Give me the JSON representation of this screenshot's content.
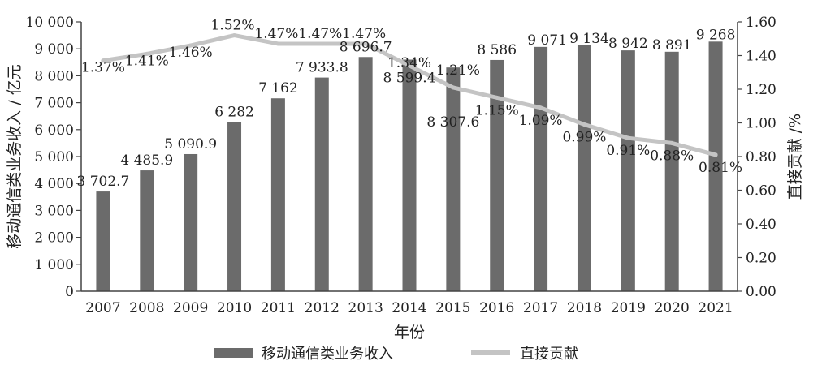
{
  "chart_data": {
    "type": "bar",
    "categories": [
      "2007",
      "2008",
      "2009",
      "2010",
      "2011",
      "2012",
      "2013",
      "2014",
      "2015",
      "2016",
      "2017",
      "2018",
      "2019",
      "2020",
      "2021"
    ],
    "series": [
      {
        "name": "移动通信类业务收入",
        "type": "bar",
        "axis": "left",
        "values": [
          3702.7,
          4485.9,
          5090.9,
          6282,
          7162,
          7933.8,
          8696.7,
          8599.4,
          8307.6,
          8586,
          9071,
          9134,
          8942,
          8891,
          9268
        ],
        "labels": [
          "3 702.7",
          "4 485.9",
          "5 090.9",
          "6 282",
          "7 162",
          "7 933.8",
          "8 696.7",
          "8 599.4",
          "8 307.6",
          "8 586",
          "9 071",
          "9 134",
          "8 942",
          "8 891",
          "9 268"
        ],
        "color": "#6b6b6b"
      },
      {
        "name": "直接贡献",
        "type": "line",
        "axis": "right",
        "values": [
          1.37,
          1.41,
          1.46,
          1.52,
          1.47,
          1.47,
          1.47,
          1.34,
          1.21,
          1.15,
          1.09,
          0.99,
          0.91,
          0.88,
          0.81
        ],
        "labels": [
          "1.37%",
          "1.41%",
          "1.46%",
          "1.52%",
          "1.47%",
          "1.47%",
          "1.47%",
          "1.34%",
          "1.21%",
          "1.15%",
          "1.09%",
          "0.99%",
          "0.91%",
          "0.88%",
          "0.81%"
        ],
        "color": "#c4c4c4"
      }
    ],
    "xlabel": "年份",
    "ylabel": "移动通信类业务收入 / 亿元",
    "y2label": "直接贡献 /%",
    "ylim": [
      0,
      10000
    ],
    "y2lim": [
      0,
      1.6
    ],
    "yticks": [
      "0",
      "1 000",
      "2 000",
      "3 000",
      "4 000",
      "5 000",
      "6 000",
      "7 000",
      "8 000",
      "9 000",
      "10 000"
    ],
    "y2ticks": [
      "0.00",
      "0.20",
      "0.40",
      "0.60",
      "0.80",
      "1.00",
      "1.20",
      "1.40",
      "1.60"
    ],
    "grid": false,
    "legend_position": "bottom"
  }
}
